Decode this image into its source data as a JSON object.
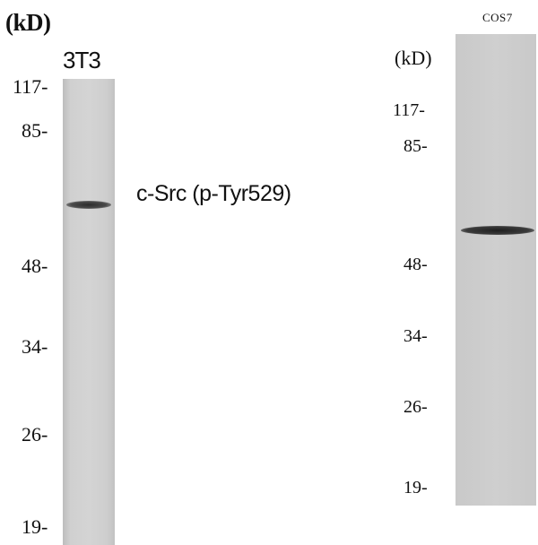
{
  "left_blot": {
    "unit": "(kD)",
    "lane_label": "3T3",
    "target": "c-Src (p-Tyr529)",
    "markers": [
      "117-",
      "85-",
      "48-",
      "34-",
      "26-",
      "19-"
    ]
  },
  "right_blot": {
    "unit": "(kD)",
    "lane_label": "COS7",
    "markers": [
      "117-",
      "85-",
      "48-",
      "34-",
      "26-",
      "19-"
    ]
  }
}
